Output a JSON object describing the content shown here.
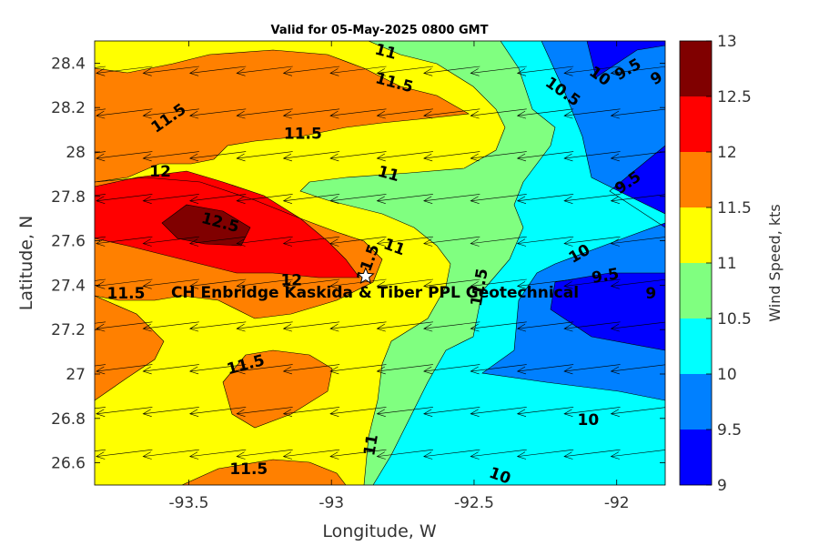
{
  "chart_data": {
    "type": "heatmap",
    "title": "Valid for 05-May-2025 0800 GMT",
    "xlabel": "Longitude, W",
    "ylabel": "Latitude, N",
    "colorbar_label": "Wind Speed, kts",
    "xlim": [
      -93.83,
      -91.83
    ],
    "ylim": [
      26.5,
      28.5
    ],
    "x_ticks": [
      -93.5,
      -93,
      -92.5,
      -92
    ],
    "x_tick_labels": [
      "-93.5",
      "-93",
      "-92.5",
      "-92"
    ],
    "y_ticks": [
      26.6,
      26.8,
      27.0,
      27.2,
      27.4,
      27.6,
      27.8,
      28.0,
      28.2,
      28.4
    ],
    "y_tick_labels": [
      "26.6",
      "26.8",
      "27",
      "27.2",
      "27.4",
      "27.6",
      "27.8",
      "28",
      "28.2",
      "28.4"
    ],
    "colorbar_ticks": [
      "9",
      "9.5",
      "10",
      "10.5",
      "11",
      "11.5",
      "12",
      "12.5",
      "13"
    ],
    "levels": [
      9,
      9.5,
      10,
      10.5,
      11,
      11.5,
      12,
      12.5,
      13
    ],
    "level_colors": [
      "#0000ff",
      "#0080ff",
      "#00ffff",
      "#80ff80",
      "#ffff00",
      "#ff8000",
      "#ff0000",
      "#800000"
    ],
    "contour_labels": [
      {
        "text": "11",
        "x": -92.81,
        "y": 28.45,
        "rot": 15
      },
      {
        "text": "11.5",
        "x": -92.78,
        "y": 28.31,
        "rot": 15
      },
      {
        "text": "10",
        "x": -92.06,
        "y": 28.34,
        "rot": 35
      },
      {
        "text": "10.5",
        "x": -92.19,
        "y": 28.27,
        "rot": 35
      },
      {
        "text": "9.5",
        "x": -91.96,
        "y": 28.37,
        "rot": -30
      },
      {
        "text": "9",
        "x": -91.86,
        "y": 28.33,
        "rot": -30
      },
      {
        "text": "11.5",
        "x": -93.57,
        "y": 28.15,
        "rot": -35
      },
      {
        "text": "11.5",
        "x": -93.1,
        "y": 28.08,
        "rot": 0
      },
      {
        "text": "11",
        "x": -92.8,
        "y": 27.9,
        "rot": 15
      },
      {
        "text": "12",
        "x": -93.6,
        "y": 27.91,
        "rot": 0
      },
      {
        "text": "9.5",
        "x": -91.96,
        "y": 27.86,
        "rot": -35
      },
      {
        "text": "12.5",
        "x": -93.39,
        "y": 27.68,
        "rot": 15
      },
      {
        "text": "11",
        "x": -92.78,
        "y": 27.57,
        "rot": 20
      },
      {
        "text": "10",
        "x": -92.13,
        "y": 27.54,
        "rot": -30
      },
      {
        "text": "11.5",
        "x": -92.87,
        "y": 27.5,
        "rot": -70
      },
      {
        "text": "11.5",
        "x": -92.48,
        "y": 27.39,
        "rot": -80
      },
      {
        "text": "9.5",
        "x": -92.04,
        "y": 27.44,
        "rot": -10
      },
      {
        "text": "12",
        "x": -93.14,
        "y": 27.42,
        "rot": 0
      },
      {
        "text": "11.5",
        "x": -93.72,
        "y": 27.36,
        "rot": 0
      },
      {
        "text": "9",
        "x": -91.88,
        "y": 27.36,
        "rot": 0
      },
      {
        "text": "11.5",
        "x": -93.3,
        "y": 27.04,
        "rot": -15
      },
      {
        "text": "10",
        "x": -92.1,
        "y": 26.79,
        "rot": 0
      },
      {
        "text": "11",
        "x": -92.86,
        "y": 26.68,
        "rot": -80
      },
      {
        "text": "11.5",
        "x": -93.29,
        "y": 26.57,
        "rot": 0
      },
      {
        "text": "10",
        "x": -92.41,
        "y": 26.54,
        "rot": 20
      }
    ],
    "site": {
      "name": "CH Enbridge  Kaskida & Tiber PPL Geotechnical",
      "x": -92.88,
      "y": 27.44
    },
    "wind_vector_direction": "from the east (arrows point west)"
  }
}
